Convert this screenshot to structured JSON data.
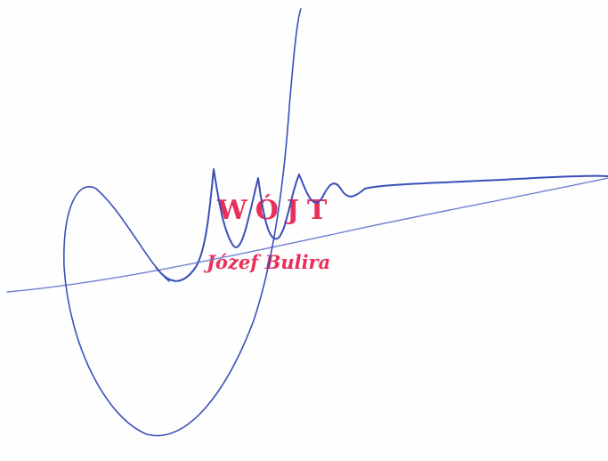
{
  "stamp": {
    "title": "WÓJT",
    "name": "Józef Bulira"
  },
  "colors": {
    "stamp": "#e8305a",
    "ink": "#3b4fb8",
    "ink_light": "#6f7fcf",
    "paper": "#fefefe"
  }
}
